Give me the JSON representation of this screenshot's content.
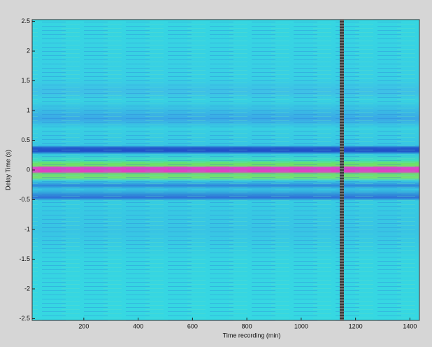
{
  "chart_data": {
    "type": "heatmap",
    "x_label": "Time recording (min)",
    "y_label": "Delay Time (s)",
    "xlim": [
      10,
      1435
    ],
    "ylim": [
      -2.53,
      2.53
    ],
    "xticks": [
      200,
      400,
      600,
      800,
      1000,
      1200,
      1400
    ],
    "yticks": [
      2.5,
      2,
      1.5,
      1,
      0.5,
      0,
      -0.5,
      -1,
      -1.5,
      -2,
      -2.5
    ]
  }
}
